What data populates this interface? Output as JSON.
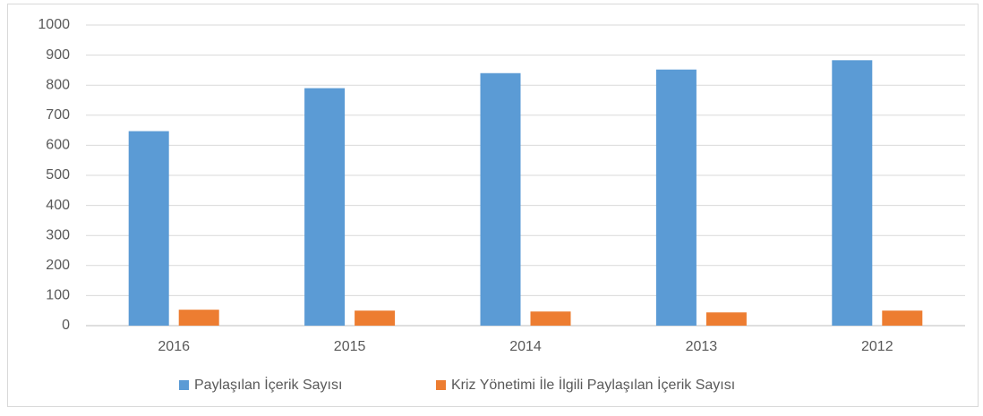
{
  "chart_data": {
    "type": "bar",
    "categories": [
      "2016",
      "2015",
      "2014",
      "2013",
      "2012"
    ],
    "series": [
      {
        "name": "Paylaşılan İçerik Sayısı",
        "color": "#5b9bd5",
        "values": [
          647,
          790,
          840,
          852,
          883
        ]
      },
      {
        "name": "Kriz Yönetimi İle İlgili Paylaşılan İçerik Sayısı",
        "color": "#ed7d31",
        "values": [
          53,
          50,
          47,
          44,
          50
        ]
      }
    ],
    "ylim": [
      0,
      1000
    ],
    "yticks": [
      0,
      100,
      200,
      300,
      400,
      500,
      600,
      700,
      800,
      900,
      1000
    ],
    "grid": true,
    "legend": "bottom"
  }
}
